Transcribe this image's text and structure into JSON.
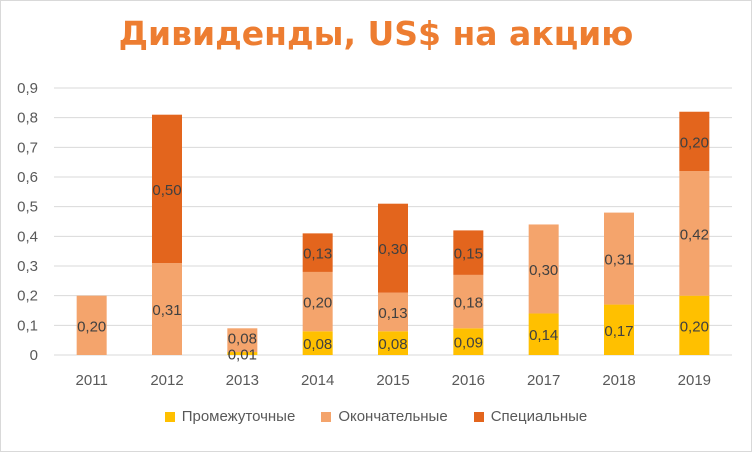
{
  "chart_data": {
    "type": "bar",
    "stacked": true,
    "title": "Дивиденды, US$ на акцию",
    "categories": [
      "2011",
      "2012",
      "2013",
      "2014",
      "2015",
      "2016",
      "2017",
      "2018",
      "2019"
    ],
    "series": [
      {
        "name": "Промежуточные",
        "color": "#ffc000",
        "values": [
          null,
          null,
          0.01,
          0.08,
          0.08,
          0.09,
          0.14,
          0.17,
          0.2
        ],
        "labels": [
          "",
          "",
          "0,01",
          "0,08",
          "0,08",
          "0,09",
          "0,14",
          "0,17",
          "0,20"
        ]
      },
      {
        "name": "Окончательные",
        "color": "#f4a46c",
        "values": [
          0.2,
          0.31,
          0.08,
          0.2,
          0.13,
          0.18,
          0.3,
          0.31,
          0.42
        ],
        "labels": [
          "0,20",
          "0,31",
          "0,08",
          "0,20",
          "0,13",
          "0,18",
          "0,30",
          "0,31",
          "0,42"
        ]
      },
      {
        "name": "Специальные",
        "color": "#e3651d",
        "values": [
          null,
          0.5,
          null,
          0.13,
          0.3,
          0.15,
          null,
          null,
          0.2
        ],
        "labels": [
          "",
          "0,50",
          "",
          "0,13",
          "0,30",
          "0,15",
          "",
          "",
          "0,20"
        ]
      }
    ],
    "yticks": [
      "0",
      "0,1",
      "0,2",
      "0,3",
      "0,4",
      "0,5",
      "0,6",
      "0,7",
      "0,8",
      "0,9"
    ],
    "ylim": [
      0,
      0.9
    ],
    "grid": true,
    "legend": "bottom"
  }
}
